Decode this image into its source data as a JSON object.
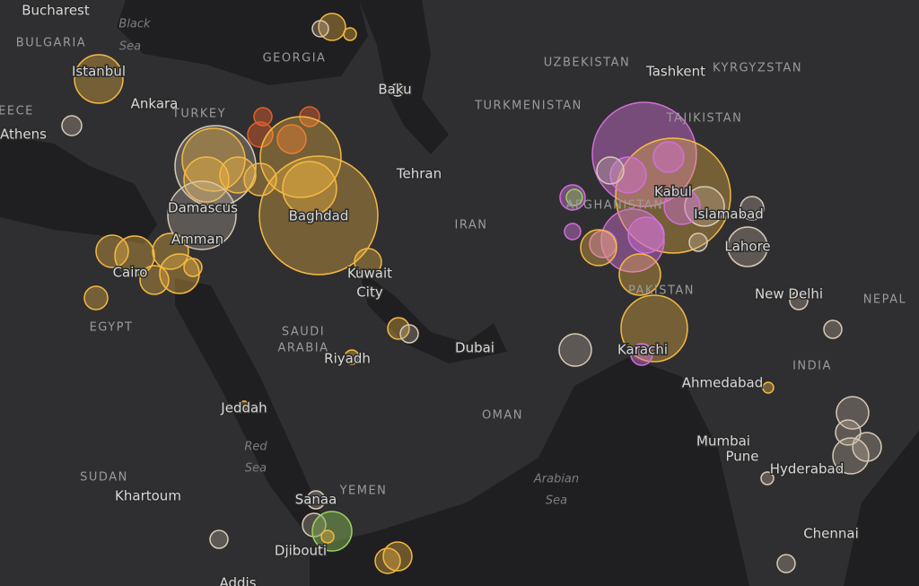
{
  "labels": [
    "Bucharest",
    "Black",
    "Sea",
    "BULGARIA",
    "GEORGIA",
    "Istanbul",
    "Ankara",
    "TURKEY",
    "EECE",
    "Athens",
    "Baku",
    "UZBEKISTAN",
    "Tashkent",
    "KYRGYZSTAN",
    "TURKMENISTAN",
    "TAJIKISTAN",
    "Tehran",
    "Damascus",
    "Baghdad",
    "Amman",
    "Cairo",
    "Kuwait",
    "City",
    "IRAN",
    "Kabul",
    "AFGHANISTAN",
    "Islamabad",
    "Lahore",
    "PAKISTAN",
    "New Delhi",
    "NEPAL",
    "EGYPT",
    "SAUDI",
    "ARABIA",
    "Riyadh",
    "Dubai",
    "Karachi",
    "INDIA",
    "Ahmedabad",
    "Jeddah",
    "OMAN",
    "Mumbai",
    "Pune",
    "Hyderabad",
    "Red",
    "Sea",
    "SUDAN",
    "Khartoum",
    "YEMEN",
    "Arabian",
    "Sea",
    "Sanaa",
    "Djibouti",
    "Chennai",
    "Addis"
  ]
}
